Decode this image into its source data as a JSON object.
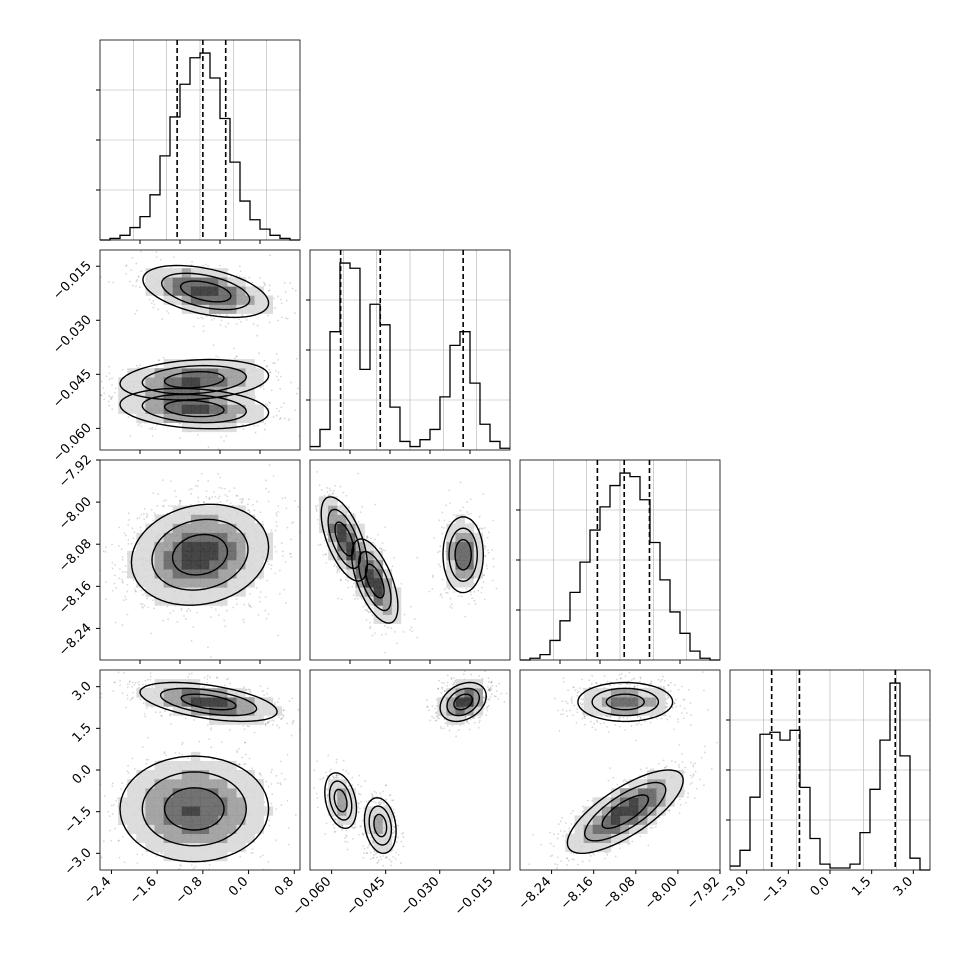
{
  "figure": {
    "type": "corner_plot",
    "parameters": 4,
    "background_color": "#ffffff",
    "histogram_line_color": "#000000",
    "contour_color": "#000000",
    "scatter_point_color": "#4d4d4d",
    "grid_color": "#b0b0b0",
    "grid": true,
    "axis_labels": [
      "",
      "",
      "",
      ""
    ]
  },
  "chart_data": [
    {
      "id": "hist-param-1",
      "type": "histogram",
      "xlim": [
        -2.6,
        0.9
      ],
      "bin_edges": [
        -2.6,
        -2.425,
        -2.25,
        -2.075,
        -1.9,
        -1.725,
        -1.55,
        -1.375,
        -1.2,
        -1.025,
        -0.85,
        -0.675,
        -0.5,
        -0.325,
        -0.15,
        0.025,
        0.2,
        0.375,
        0.55,
        0.725,
        0.9
      ],
      "counts": [
        0,
        1,
        3,
        8,
        15,
        29,
        54,
        79,
        100,
        117,
        120,
        104,
        78,
        50,
        25,
        13,
        7,
        3,
        1,
        0
      ],
      "quantile_lines": [
        -1.25,
        -0.8,
        -0.4
      ]
    },
    {
      "id": "hist-param-2",
      "type": "histogram",
      "xlim": [
        -0.066,
        -0.0105
      ],
      "bin_edges": [
        -0.066,
        -0.06323,
        -0.06045,
        -0.05768,
        -0.0549,
        -0.05213,
        -0.04935,
        -0.04658,
        -0.0438,
        -0.04103,
        -0.03825,
        -0.03548,
        -0.0327,
        -0.02993,
        -0.02715,
        -0.02438,
        -0.0216,
        -0.01883,
        -0.01605,
        -0.01328,
        -0.0105
      ],
      "counts": [
        2,
        12,
        69,
        109,
        106,
        47,
        85,
        73,
        25,
        5,
        2,
        6,
        12,
        31,
        61,
        69,
        39,
        15,
        5,
        1
      ],
      "quantile_lines": [
        -0.0575,
        -0.0465,
        -0.0235
      ]
    },
    {
      "id": "hist-param-3",
      "type": "histogram",
      "xlim": [
        -8.3,
        -7.92
      ],
      "bin_edges": [
        -8.3,
        -8.281,
        -8.262,
        -8.243,
        -8.224,
        -8.205,
        -8.186,
        -8.167,
        -8.148,
        -8.129,
        -8.11,
        -8.091,
        -8.072,
        -8.053,
        -8.034,
        -8.015,
        -7.996,
        -7.977,
        -7.958,
        -7.939,
        -7.92
      ],
      "counts": [
        0,
        1,
        3,
        11,
        22,
        38,
        55,
        73,
        86,
        98,
        105,
        103,
        90,
        66,
        45,
        27,
        15,
        5,
        1,
        0
      ],
      "quantile_lines": [
        -8.153,
        -8.102,
        -8.054
      ]
    },
    {
      "id": "hist-param-4",
      "type": "histogram",
      "xlim": [
        -3.6,
        3.6
      ],
      "bin_edges": [
        -3.6,
        -3.24,
        -2.88,
        -2.52,
        -2.16,
        -1.8,
        -1.44,
        -1.08,
        -0.72,
        -0.36,
        0.0,
        0.36,
        0.72,
        1.08,
        1.44,
        1.8,
        2.16,
        2.52,
        2.88,
        3.24,
        3.6
      ],
      "counts": [
        2,
        10,
        37,
        69,
        70,
        66,
        71,
        42,
        16,
        3,
        1,
        1,
        3,
        19,
        41,
        66,
        95,
        58,
        6,
        0
      ],
      "quantile_lines": [
        -2.1,
        -1.1,
        2.35
      ]
    },
    {
      "id": "panel-p2-vs-p1",
      "type": "scatter",
      "xlim": [
        -2.6,
        0.9
      ],
      "ylim": [
        -0.066,
        -0.0105
      ],
      "x_ticks": [],
      "y_ticks": [
        "−0.015",
        "−0.030",
        "−0.045",
        "−0.060"
      ],
      "blobs": [
        {
          "center": [
            -0.75,
            -0.022
          ],
          "spread": [
            0.55,
            0.0036
          ],
          "rho": -0.45,
          "weight": 0.34
        },
        {
          "center": [
            -0.95,
            -0.0465
          ],
          "spread": [
            0.65,
            0.0028
          ],
          "rho": 0.2,
          "weight": 0.33
        },
        {
          "center": [
            -0.95,
            -0.0545
          ],
          "spread": [
            0.65,
            0.0028
          ],
          "rho": -0.2,
          "weight": 0.33
        }
      ]
    },
    {
      "id": "panel-p3-vs-p1",
      "type": "scatter",
      "xlim": [
        -2.6,
        0.9
      ],
      "ylim": [
        -8.3,
        -7.92
      ],
      "x_ticks": [],
      "y_ticks": [
        "−7.92",
        "−8.00",
        "−8.08",
        "−8.16",
        "−8.24"
      ],
      "blobs": [
        {
          "center": [
            -0.85,
            -8.1
          ],
          "spread": [
            0.6,
            0.048
          ],
          "rho": 0.15,
          "weight": 1.0
        }
      ]
    },
    {
      "id": "panel-p3-vs-p2",
      "type": "scatter",
      "xlim": [
        -0.066,
        -0.0105
      ],
      "ylim": [
        -8.3,
        -7.92
      ],
      "x_ticks": [],
      "y_ticks": [],
      "blobs": [
        {
          "center": [
            -0.0565,
            -8.07
          ],
          "spread": [
            0.0032,
            0.04
          ],
          "rho": -0.6,
          "weight": 0.33
        },
        {
          "center": [
            -0.048,
            -8.15
          ],
          "spread": [
            0.0032,
            0.04
          ],
          "rho": -0.6,
          "weight": 0.33
        },
        {
          "center": [
            -0.0235,
            -8.1
          ],
          "spread": [
            0.0028,
            0.036
          ],
          "rho": 0.0,
          "weight": 0.34
        }
      ]
    },
    {
      "id": "panel-p4-vs-p1",
      "type": "scatter",
      "xlim": [
        -2.6,
        0.9
      ],
      "ylim": [
        -3.6,
        3.6
      ],
      "x_ticks": [
        "−2.4",
        "−1.6",
        "−0.8",
        "0.0",
        "0.8"
      ],
      "y_ticks": [
        "3.0",
        "1.5",
        "0.0",
        "−1.5",
        "−3.0"
      ],
      "blobs": [
        {
          "center": [
            -0.7,
            2.45
          ],
          "spread": [
            0.6,
            0.35
          ],
          "rho": -0.5,
          "weight": 0.5
        },
        {
          "center": [
            -0.95,
            -1.4
          ],
          "spread": [
            0.65,
            0.95
          ],
          "rho": 0.0,
          "weight": 0.5
        }
      ]
    },
    {
      "id": "panel-p4-vs-p2",
      "type": "scatter",
      "xlim": [
        -0.066,
        -0.0105
      ],
      "ylim": [
        -3.6,
        3.6
      ],
      "x_ticks": [
        "−0.060",
        "−0.045",
        "−0.030",
        "−0.015"
      ],
      "y_ticks": [],
      "blobs": [
        {
          "center": [
            -0.0235,
            2.45
          ],
          "spread": [
            0.0032,
            0.35
          ],
          "rho": 0.3,
          "weight": 0.5
        },
        {
          "center": [
            -0.0575,
            -1.1
          ],
          "spread": [
            0.0022,
            0.5
          ],
          "rho": -0.3,
          "weight": 0.25
        },
        {
          "center": [
            -0.0465,
            -2.0
          ],
          "spread": [
            0.0022,
            0.5
          ],
          "rho": -0.2,
          "weight": 0.25
        }
      ]
    },
    {
      "id": "panel-p4-vs-p3",
      "type": "scatter",
      "xlim": [
        -8.3,
        -7.92
      ],
      "ylim": [
        -3.6,
        3.6
      ],
      "x_ticks": [
        "−8.24",
        "−8.16",
        "−8.08",
        "−8.00",
        "−7.92"
      ],
      "y_ticks": [],
      "blobs": [
        {
          "center": [
            -8.1,
            2.45
          ],
          "spread": [
            0.045,
            0.35
          ],
          "rho": 0.0,
          "weight": 0.5
        },
        {
          "center": [
            -8.1,
            -1.5
          ],
          "spread": [
            0.055,
            0.75
          ],
          "rho": 0.75,
          "weight": 0.5
        }
      ]
    }
  ],
  "x_tick_labels": [
    [
      "−2.4",
      "−1.6",
      "−0.8",
      "0.0",
      "0.8"
    ],
    [
      "−0.060",
      "−0.045",
      "−0.030",
      "−0.015"
    ],
    [
      "−8.24",
      "−8.16",
      "−8.08",
      "−8.00",
      "−7.92"
    ],
    [
      "−3.0",
      "−1.5",
      "0.0",
      "1.5",
      "3.0"
    ]
  ]
}
